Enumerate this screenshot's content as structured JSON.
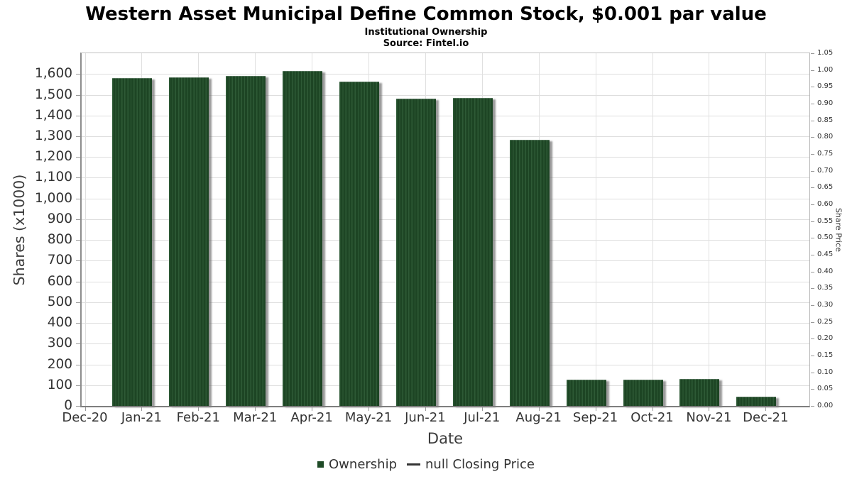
{
  "header": {
    "title": "Western Asset Municipal Define Common Stock, $0.001 par value",
    "subtitle": "Institutional Ownership",
    "source": "Source: Fintel.io"
  },
  "chart_data": {
    "type": "bar",
    "title": "Western Asset Municipal Define Common Stock, $0.001 par value",
    "subtitle": "Institutional Ownership",
    "source": "Source: Fintel.io",
    "categories": [
      "Dec-20",
      "Jan-21",
      "Feb-21",
      "Mar-21",
      "Apr-21",
      "May-21",
      "Jun-21",
      "Jul-21",
      "Aug-21",
      "Sep-21",
      "Oct-21",
      "Nov-21",
      "Dec-21"
    ],
    "series": [
      {
        "name": "Ownership",
        "type": "bar",
        "color": "#1e4a26",
        "values": [
          null,
          1580,
          1585,
          1591,
          1614,
          1562,
          1480,
          1483,
          1283,
          128,
          128,
          130,
          44
        ]
      },
      {
        "name": "null Closing Price",
        "type": "line",
        "color": "#333333",
        "values": []
      }
    ],
    "xlabel": "Date",
    "ylabel_left": "Shares (x1000)",
    "ylabel_right": "Share Price",
    "y_left": {
      "min": 0,
      "tick_max": 1600,
      "step": 100,
      "axis_max": 1700
    },
    "y_right": {
      "min": 0,
      "max": 1.05,
      "step": 0.05
    },
    "grid": true,
    "legend_position": "bottom",
    "units_left": "thousands of shares"
  },
  "legend": {
    "items": [
      {
        "label": "Ownership",
        "marker": "square",
        "color": "#1e4a26"
      },
      {
        "label": "null Closing Price",
        "marker": "dash",
        "color": "#333333"
      }
    ]
  },
  "colors": {
    "bar_base": "#1d4524",
    "bar_stripe": "#2e5a36",
    "bar_shadow": "#8f8f8f",
    "gridline": "#dedede",
    "axis_text": "#333333",
    "title_text": "#000000"
  }
}
